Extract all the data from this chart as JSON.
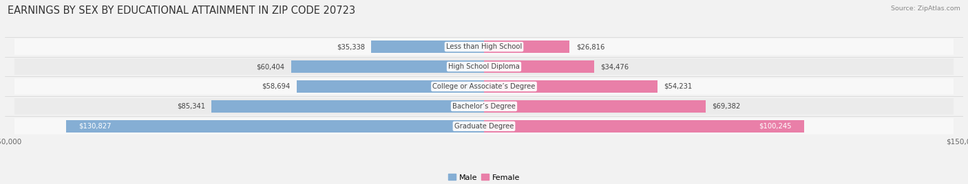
{
  "title": "EARNINGS BY SEX BY EDUCATIONAL ATTAINMENT IN ZIP CODE 20723",
  "source": "Source: ZipAtlas.com",
  "categories": [
    "Less than High School",
    "High School Diploma",
    "College or Associate’s Degree",
    "Bachelor’s Degree",
    "Graduate Degree"
  ],
  "male_values": [
    35338,
    60404,
    58694,
    85341,
    130827
  ],
  "female_values": [
    26816,
    34476,
    54231,
    69382,
    100245
  ],
  "male_color": "#85aed4",
  "female_color": "#e97fa8",
  "max_val": 150000,
  "bg_color": "#f2f2f2",
  "row_bg_light": "#f8f8f8",
  "row_bg_dark": "#ebebeb",
  "title_fontsize": 10.5,
  "bar_height": 0.62,
  "male_label_inside_threshold": 100000,
  "female_label_inside_threshold": 80000
}
